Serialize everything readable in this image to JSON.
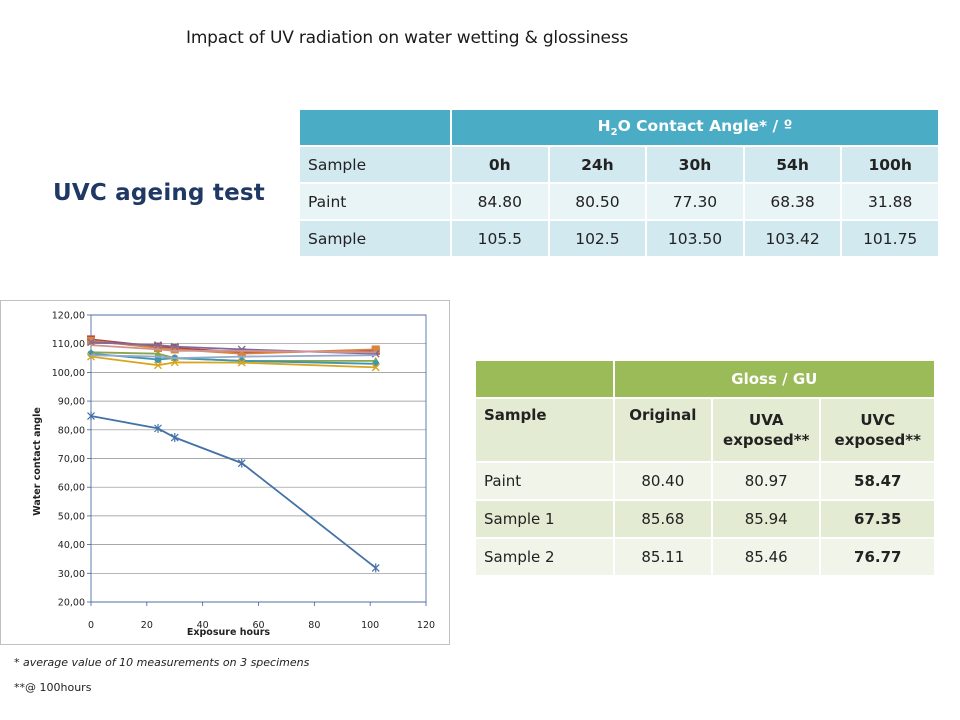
{
  "title": "Impact of UV radiation on water wetting & glossiness",
  "section_title": "UVC ageing test",
  "contact_table": {
    "header_prefix": "H",
    "header_sub": "2",
    "header_suffix": "O Contact Angle* / º",
    "columns": [
      "Sample",
      "0h",
      "24h",
      "30h",
      "54h",
      "100h"
    ],
    "rows": [
      [
        "Paint",
        "84.80",
        "80.50",
        "77.30",
        "68.38",
        "31.88"
      ],
      [
        "Sample",
        "105.5",
        "102.5",
        "103.50",
        "103.42",
        "101.75"
      ]
    ]
  },
  "gloss_table": {
    "header": "Gloss / GU",
    "columns": [
      "Sample",
      "Original",
      "UVA exposed**",
      "UVC exposed**"
    ],
    "rows": [
      [
        "Paint",
        "80.40",
        "80.97",
        "58.47"
      ],
      [
        "Sample 1",
        "85.68",
        "85.94",
        "67.35"
      ],
      [
        "Sample 2",
        "85.11",
        "85.46",
        "76.77"
      ]
    ]
  },
  "chart_data": {
    "type": "line",
    "xlabel": "Exposure hours",
    "ylabel": "Water contact angle",
    "xlim": [
      0,
      120
    ],
    "ylim": [
      20,
      120
    ],
    "xticks": [
      "0",
      "20",
      "40",
      "60",
      "80",
      "100",
      "120"
    ],
    "yticks": [
      "20,00",
      "30,00",
      "40,00",
      "50,00",
      "60,00",
      "70,00",
      "80,00",
      "90,00",
      "100,00",
      "110,00",
      "120,00"
    ],
    "grid": "horizontal",
    "series": [
      {
        "color": "#4572a7",
        "marker": "star",
        "points": [
          [
            0,
            84.8
          ],
          [
            24,
            80.5
          ],
          [
            30,
            77.3
          ],
          [
            54,
            68.38
          ],
          [
            102,
            31.88
          ]
        ]
      },
      {
        "color": "#aa4643",
        "marker": "square",
        "points": [
          [
            0,
            111.5
          ],
          [
            24,
            109.0
          ],
          [
            30,
            108.5
          ],
          [
            54,
            107.0
          ],
          [
            102,
            107.5
          ]
        ]
      },
      {
        "color": "#db843d",
        "marker": "square",
        "points": [
          [
            0,
            111.0
          ],
          [
            24,
            108.5
          ],
          [
            30,
            108.0
          ],
          [
            54,
            106.5
          ],
          [
            102,
            108.0
          ]
        ]
      },
      {
        "color": "#89a54e",
        "marker": "triangle",
        "points": [
          [
            0,
            107.0
          ],
          [
            24,
            106.5
          ],
          [
            30,
            105.0
          ],
          [
            54,
            104.0
          ],
          [
            102,
            104.0
          ]
        ]
      },
      {
        "color": "#80699b",
        "marker": "x",
        "points": [
          [
            0,
            110.5
          ],
          [
            24,
            109.5
          ],
          [
            30,
            109.0
          ],
          [
            54,
            108.0
          ],
          [
            102,
            106.5
          ]
        ]
      },
      {
        "color": "#3d96ae",
        "marker": "circle",
        "points": [
          [
            0,
            106.5
          ],
          [
            24,
            104.5
          ],
          [
            30,
            105.0
          ],
          [
            54,
            104.0
          ],
          [
            102,
            103.0
          ]
        ]
      },
      {
        "color": "#d9a51e",
        "marker": "x",
        "points": [
          [
            0,
            105.5
          ],
          [
            24,
            102.5
          ],
          [
            30,
            103.5
          ],
          [
            54,
            103.42
          ],
          [
            102,
            101.75
          ]
        ]
      },
      {
        "color": "#93a9cf",
        "marker": "none",
        "points": [
          [
            0,
            106.0
          ],
          [
            24,
            105.5
          ],
          [
            30,
            105.0
          ],
          [
            54,
            105.5
          ],
          [
            102,
            106.0
          ]
        ]
      },
      {
        "color": "#d19392",
        "marker": "none",
        "points": [
          [
            0,
            109.5
          ],
          [
            24,
            108.0
          ],
          [
            30,
            107.5
          ],
          [
            54,
            107.5
          ],
          [
            102,
            107.0
          ]
        ]
      }
    ]
  },
  "footnotes": {
    "note1": "* average value of 10 measurements on 3 specimens",
    "note2": "**@ 100hours"
  }
}
